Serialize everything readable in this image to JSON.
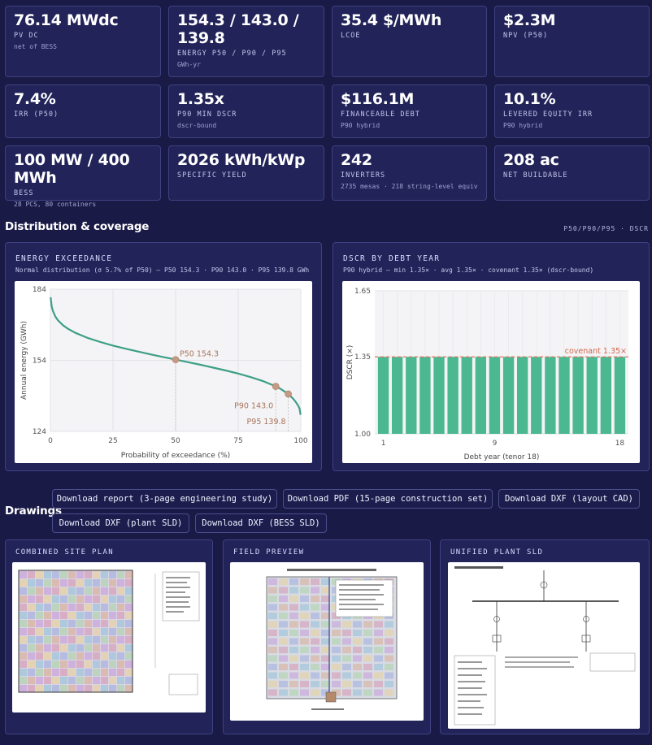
{
  "kpis": [
    {
      "value": "76.14 MWdc",
      "label": "PV DC",
      "sub": "net of BESS"
    },
    {
      "value": "154.3 / 143.0 / 139.8",
      "label": "ENERGY P50 / P90 / P95",
      "sub": "GWh-yr"
    },
    {
      "value": "35.4 $/MWh",
      "label": "LCOE",
      "sub": ""
    },
    {
      "value": "$2.3M",
      "label": "NPV (P50)",
      "sub": ""
    },
    {
      "value": "7.4%",
      "label": "IRR (P50)",
      "sub": ""
    },
    {
      "value": "1.35x",
      "label": "P90 MIN DSCR",
      "sub": "dscr-bound"
    },
    {
      "value": "$116.1M",
      "label": "FINANCEABLE DEBT",
      "sub": "P90 hybrid"
    },
    {
      "value": "10.1%",
      "label": "LEVERED EQUITY IRR",
      "sub": "P90 hybrid"
    },
    {
      "value": "100 MW / 400 MWh",
      "label": "BESS",
      "sub": "28 PCS, 80 containers"
    },
    {
      "value": "2026 kWh/kWp",
      "label": "SPECIFIC YIELD",
      "sub": ""
    },
    {
      "value": "242",
      "label": "INVERTERS",
      "sub": "2735 mesas · 218 string-level equiv"
    },
    {
      "value": "208 ac",
      "label": "NET BUILDABLE",
      "sub": ""
    }
  ],
  "distribution": {
    "title": "Distribution & coverage",
    "tag": "P50/P90/P95 · DSCR"
  },
  "exceedance": {
    "title": "ENERGY EXCEEDANCE",
    "subtitle": "Normal distribution (σ 5.7% of P50) — P50 154.3 · P90 143.0 · P95 139.8 GWh"
  },
  "dscr": {
    "title": "DSCR BY DEBT YEAR",
    "subtitle": "P90 hybrid — min 1.35× · avg 1.35× · covenant 1.35× (dscr-bound)"
  },
  "chart_data": [
    {
      "type": "line",
      "xlabel": "Probability of exceedance (%)",
      "ylabel": "Annual energy (GWh)",
      "xlim": [
        0,
        100
      ],
      "ylim": [
        124,
        184
      ],
      "xticks": [
        0,
        25,
        50,
        75,
        100
      ],
      "yticks": [
        124,
        154,
        184
      ],
      "grid": true,
      "x": [
        0.1,
        0.5,
        1,
        2,
        3,
        5,
        7,
        10,
        15,
        20,
        25,
        30,
        35,
        40,
        45,
        50,
        55,
        60,
        65,
        70,
        75,
        80,
        85,
        88,
        90,
        92,
        95,
        97,
        98,
        99,
        99.5,
        99.9
      ],
      "y": [
        180.6,
        176.9,
        174.8,
        172.4,
        170.9,
        168.8,
        167.3,
        165.6,
        163.4,
        161.7,
        160.2,
        158.9,
        157.7,
        156.5,
        155.4,
        154.3,
        153.2,
        152.1,
        150.9,
        149.7,
        148.4,
        146.9,
        145.2,
        143.9,
        143.0,
        141.9,
        139.8,
        137.7,
        136.4,
        134.8,
        133.6,
        131.0
      ],
      "annotations": [
        {
          "label": "P50 154.3",
          "x": 50,
          "y": 154.3
        },
        {
          "label": "P90 143.0",
          "x": 90,
          "y": 143.0
        },
        {
          "label": "P95 139.8",
          "x": 95,
          "y": 139.8
        }
      ]
    },
    {
      "type": "bar",
      "xlabel": "Debt year (tenor 18)",
      "ylabel": "DSCR (×)",
      "ylim": [
        1.0,
        1.65
      ],
      "yticks": [
        1.0,
        1.35,
        1.65
      ],
      "xticks": [
        1,
        9,
        18
      ],
      "categories": [
        1,
        2,
        3,
        4,
        5,
        6,
        7,
        8,
        9,
        10,
        11,
        12,
        13,
        14,
        15,
        16,
        17,
        18
      ],
      "values": [
        1.35,
        1.35,
        1.35,
        1.35,
        1.35,
        1.35,
        1.35,
        1.35,
        1.35,
        1.35,
        1.35,
        1.35,
        1.35,
        1.35,
        1.35,
        1.35,
        1.35,
        1.35
      ],
      "covenant": 1.35,
      "covenant_label": "covenant 1.35×",
      "grid": true
    }
  ],
  "drawings": {
    "title": "Drawings",
    "buttons": [
      "Download report (3-page engineering study)",
      "Download PDF (15-page construction set)",
      "Download DXF (layout CAD)",
      "Download DXF (plant SLD)",
      "Download DXF (BESS SLD)"
    ],
    "thumbnails": [
      "COMBINED SITE PLAN",
      "FIELD PREVIEW",
      "UNIFIED PLANT SLD"
    ]
  },
  "colors": {
    "background": "#1a1a47",
    "card": "#222359",
    "line": "#3d9f86",
    "bar": "#4bb891",
    "marker": "#c59a85",
    "covenant": "#e8765c"
  }
}
